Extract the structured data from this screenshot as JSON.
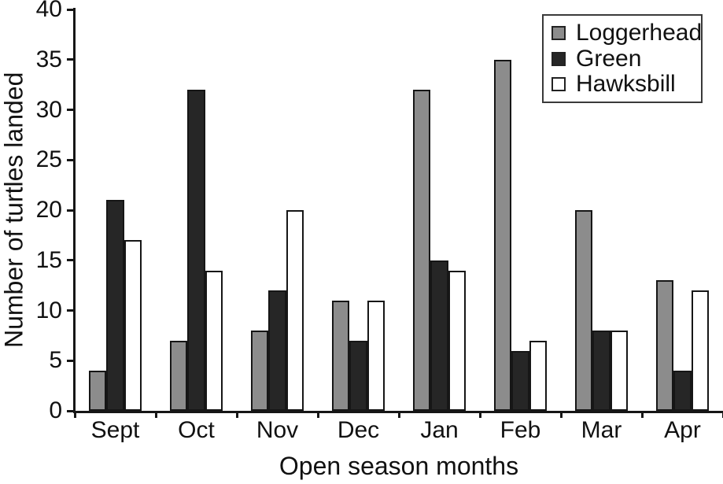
{
  "figure": {
    "background": "#ffffff",
    "text_color": "#111111"
  },
  "chart_data": {
    "type": "bar",
    "xlabel": "Open season months",
    "ylabel": "Number of turtles landed",
    "categories": [
      "Sept",
      "Oct",
      "Nov",
      "Dec",
      "Jan",
      "Feb",
      "Mar",
      "Apr"
    ],
    "series": [
      {
        "name": "Loggerhead",
        "color": "#8c8c8c",
        "values": [
          4,
          7,
          8,
          11,
          32,
          35,
          20,
          13
        ]
      },
      {
        "name": "Green",
        "color": "#262626",
        "values": [
          21,
          32,
          12,
          7,
          15,
          6,
          8,
          4
        ]
      },
      {
        "name": "Hawksbill",
        "color": "#ffffff",
        "values": [
          17,
          14,
          20,
          11,
          14,
          7,
          8,
          12
        ]
      }
    ],
    "ylim": [
      0,
      40
    ],
    "yticks": [
      0,
      5,
      10,
      15,
      20,
      25,
      30,
      35,
      40
    ],
    "grid": false,
    "legend_position": "top-right",
    "bar_outline_color": "#161616",
    "axis_color": "#161616"
  }
}
